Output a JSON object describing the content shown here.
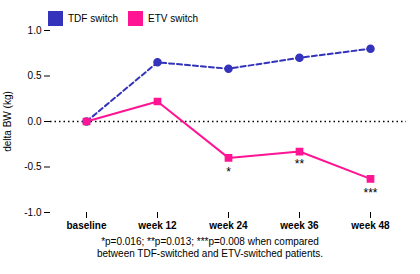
{
  "chart_data": {
    "type": "line",
    "categories": [
      "baseline",
      "week 12",
      "week 24",
      "week 36",
      "week 48"
    ],
    "series": [
      {
        "name": "TDF switch",
        "color": "#3333BB",
        "line_style": "dashed",
        "marker": "circle",
        "values": [
          0.0,
          0.65,
          0.58,
          0.7,
          0.8
        ]
      },
      {
        "name": "ETV switch",
        "color": "#FF1493",
        "line_style": "solid",
        "marker": "square",
        "values": [
          0.0,
          0.22,
          -0.4,
          -0.33,
          -0.63
        ]
      }
    ],
    "ylabel": "delta BW (kg)",
    "ylim": [
      -1.0,
      1.0
    ],
    "yticks": [
      {
        "value": -1.0,
        "label": "-1.0"
      },
      {
        "value": -0.5,
        "label": "-0.5"
      },
      {
        "value": 0.0,
        "label": "0.0"
      },
      {
        "value": 0.5,
        "label": "0.5"
      },
      {
        "value": 1.0,
        "label": "1.0"
      }
    ],
    "hline": 0.0,
    "annotations": [
      {
        "text": "*",
        "x": "week 24",
        "y": -0.5
      },
      {
        "text": "**",
        "x": "week 36",
        "y": -0.42
      },
      {
        "text": "***",
        "x": "week 48",
        "y": -0.74
      }
    ],
    "caption": [
      "*p=0.016; **p=0.013; ***p=0.008 when compared",
      "between TDF-switched and ETV-switched patients."
    ],
    "legend": "upper left",
    "grid": false
  }
}
